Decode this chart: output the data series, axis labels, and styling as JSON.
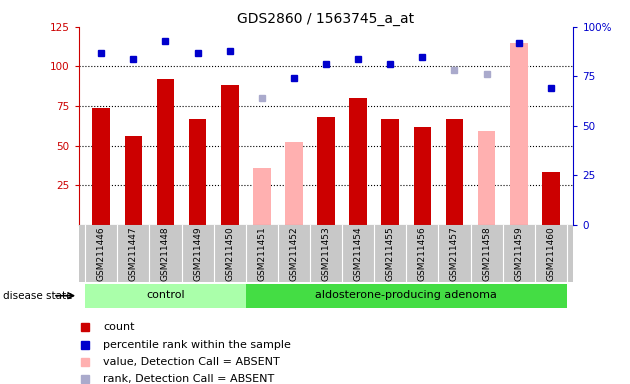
{
  "title": "GDS2860 / 1563745_a_at",
  "samples": [
    "GSM211446",
    "GSM211447",
    "GSM211448",
    "GSM211449",
    "GSM211450",
    "GSM211451",
    "GSM211452",
    "GSM211453",
    "GSM211454",
    "GSM211455",
    "GSM211456",
    "GSM211457",
    "GSM211458",
    "GSM211459",
    "GSM211460"
  ],
  "n_control": 5,
  "n_adenoma": 10,
  "count_values": [
    74,
    56,
    92,
    67,
    88,
    null,
    null,
    68,
    80,
    67,
    62,
    67,
    null,
    null,
    33
  ],
  "count_absent": [
    null,
    null,
    null,
    null,
    null,
    36,
    52,
    null,
    null,
    null,
    null,
    null,
    59,
    115,
    null
  ],
  "percentile_rank": [
    87,
    84,
    93,
    87,
    88,
    null,
    74,
    81,
    84,
    81,
    85,
    null,
    null,
    92,
    69
  ],
  "rank_absent": [
    null,
    null,
    null,
    null,
    null,
    64,
    null,
    null,
    null,
    null,
    null,
    78,
    76,
    null,
    null
  ],
  "ylim_left": [
    0,
    125
  ],
  "ylim_right": [
    0,
    100
  ],
  "yticks_left": [
    25,
    50,
    75,
    100,
    125
  ],
  "yticks_right": [
    0,
    25,
    50,
    75,
    100
  ],
  "bar_color_red": "#cc0000",
  "bar_color_pink": "#ffb0b0",
  "dot_color_blue": "#0000cc",
  "dot_color_lightblue": "#aaaacc",
  "bg_color_xticklabels": "#c8c8c8",
  "group_control_color": "#aaffaa",
  "group_adenoma_color": "#44dd44",
  "disease_state_label": "disease state",
  "group_labels": [
    "control",
    "aldosterone-producing adenoma"
  ],
  "legend_items": [
    {
      "label": "count",
      "color": "#cc0000",
      "marker": "s"
    },
    {
      "label": "percentile rank within the sample",
      "color": "#0000cc",
      "marker": "s"
    },
    {
      "label": "value, Detection Call = ABSENT",
      "color": "#ffb0b0",
      "marker": "s"
    },
    {
      "label": "rank, Detection Call = ABSENT",
      "color": "#aaaacc",
      "marker": "s"
    }
  ]
}
